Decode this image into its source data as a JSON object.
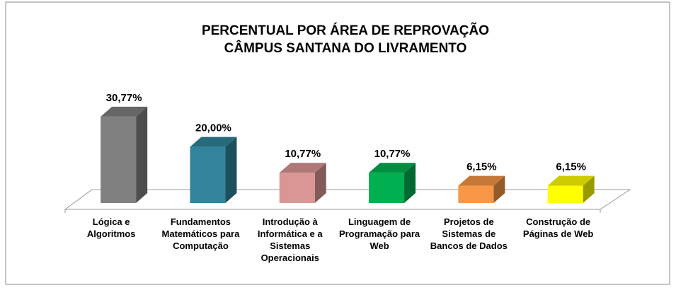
{
  "chart_data": {
    "type": "bar3d",
    "title": "PERCENTUAL POR ÁREA DE REPROVAÇÃO",
    "subtitle": "CÂMPUS SANTANA DO LIVRAMENTO",
    "categories": [
      "Lógica e Algoritmos",
      "Fundamentos Matemáticos para Computação",
      "Introdução à Informática e a Sistemas Operacionais",
      "Linguagem de Programação para Web",
      "Projetos de Sistemas de Bancos de Dados",
      "Construção de Páginas de Web"
    ],
    "values": [
      30.77,
      20.0,
      10.77,
      10.77,
      6.15,
      6.15
    ],
    "value_labels": [
      "30,77%",
      "20,00%",
      "10,77%",
      "10,77%",
      "6,15%",
      "6,15%"
    ],
    "colors": [
      "#808080",
      "#31849b",
      "#d99694",
      "#00b050",
      "#f79646",
      "#ffff00"
    ]
  }
}
